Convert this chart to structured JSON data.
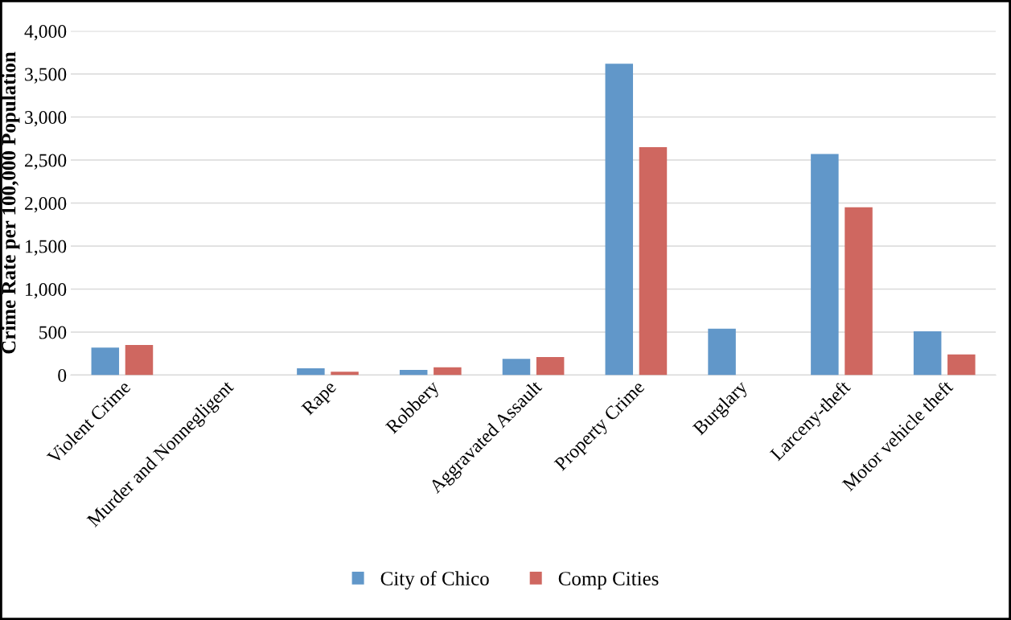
{
  "chart_data": {
    "type": "bar",
    "ylabel": "Crime Rate per 100,000 Population",
    "categories": [
      "Violent Crime",
      "Murder and Nonnegligent",
      "Rape",
      "Robbery",
      "Aggravated Assault",
      "Property Crime",
      "Burglary",
      "Larceny-theft",
      "Motor vehicle theft"
    ],
    "series": [
      {
        "name": "City of Chico",
        "color": "#6197c9",
        "values": [
          320,
          null,
          80,
          60,
          190,
          3620,
          540,
          2570,
          510
        ]
      },
      {
        "name": "Comp Cities",
        "color": "#cf6760",
        "values": [
          350,
          null,
          40,
          90,
          210,
          2650,
          null,
          1950,
          240
        ]
      }
    ],
    "ylim": [
      0,
      4000
    ],
    "yticks": [
      {
        "value": 0,
        "label": "0"
      },
      {
        "value": 500,
        "label": "500"
      },
      {
        "value": 1000,
        "label": "1,000"
      },
      {
        "value": 1500,
        "label": "1,500"
      },
      {
        "value": 2000,
        "label": "2,000"
      },
      {
        "value": 2500,
        "label": "2,500"
      },
      {
        "value": 3000,
        "label": "3,000"
      },
      {
        "value": 3500,
        "label": "3,500"
      },
      {
        "value": 4000,
        "label": "4,000"
      }
    ],
    "grid": "y",
    "legend": "bottom"
  }
}
